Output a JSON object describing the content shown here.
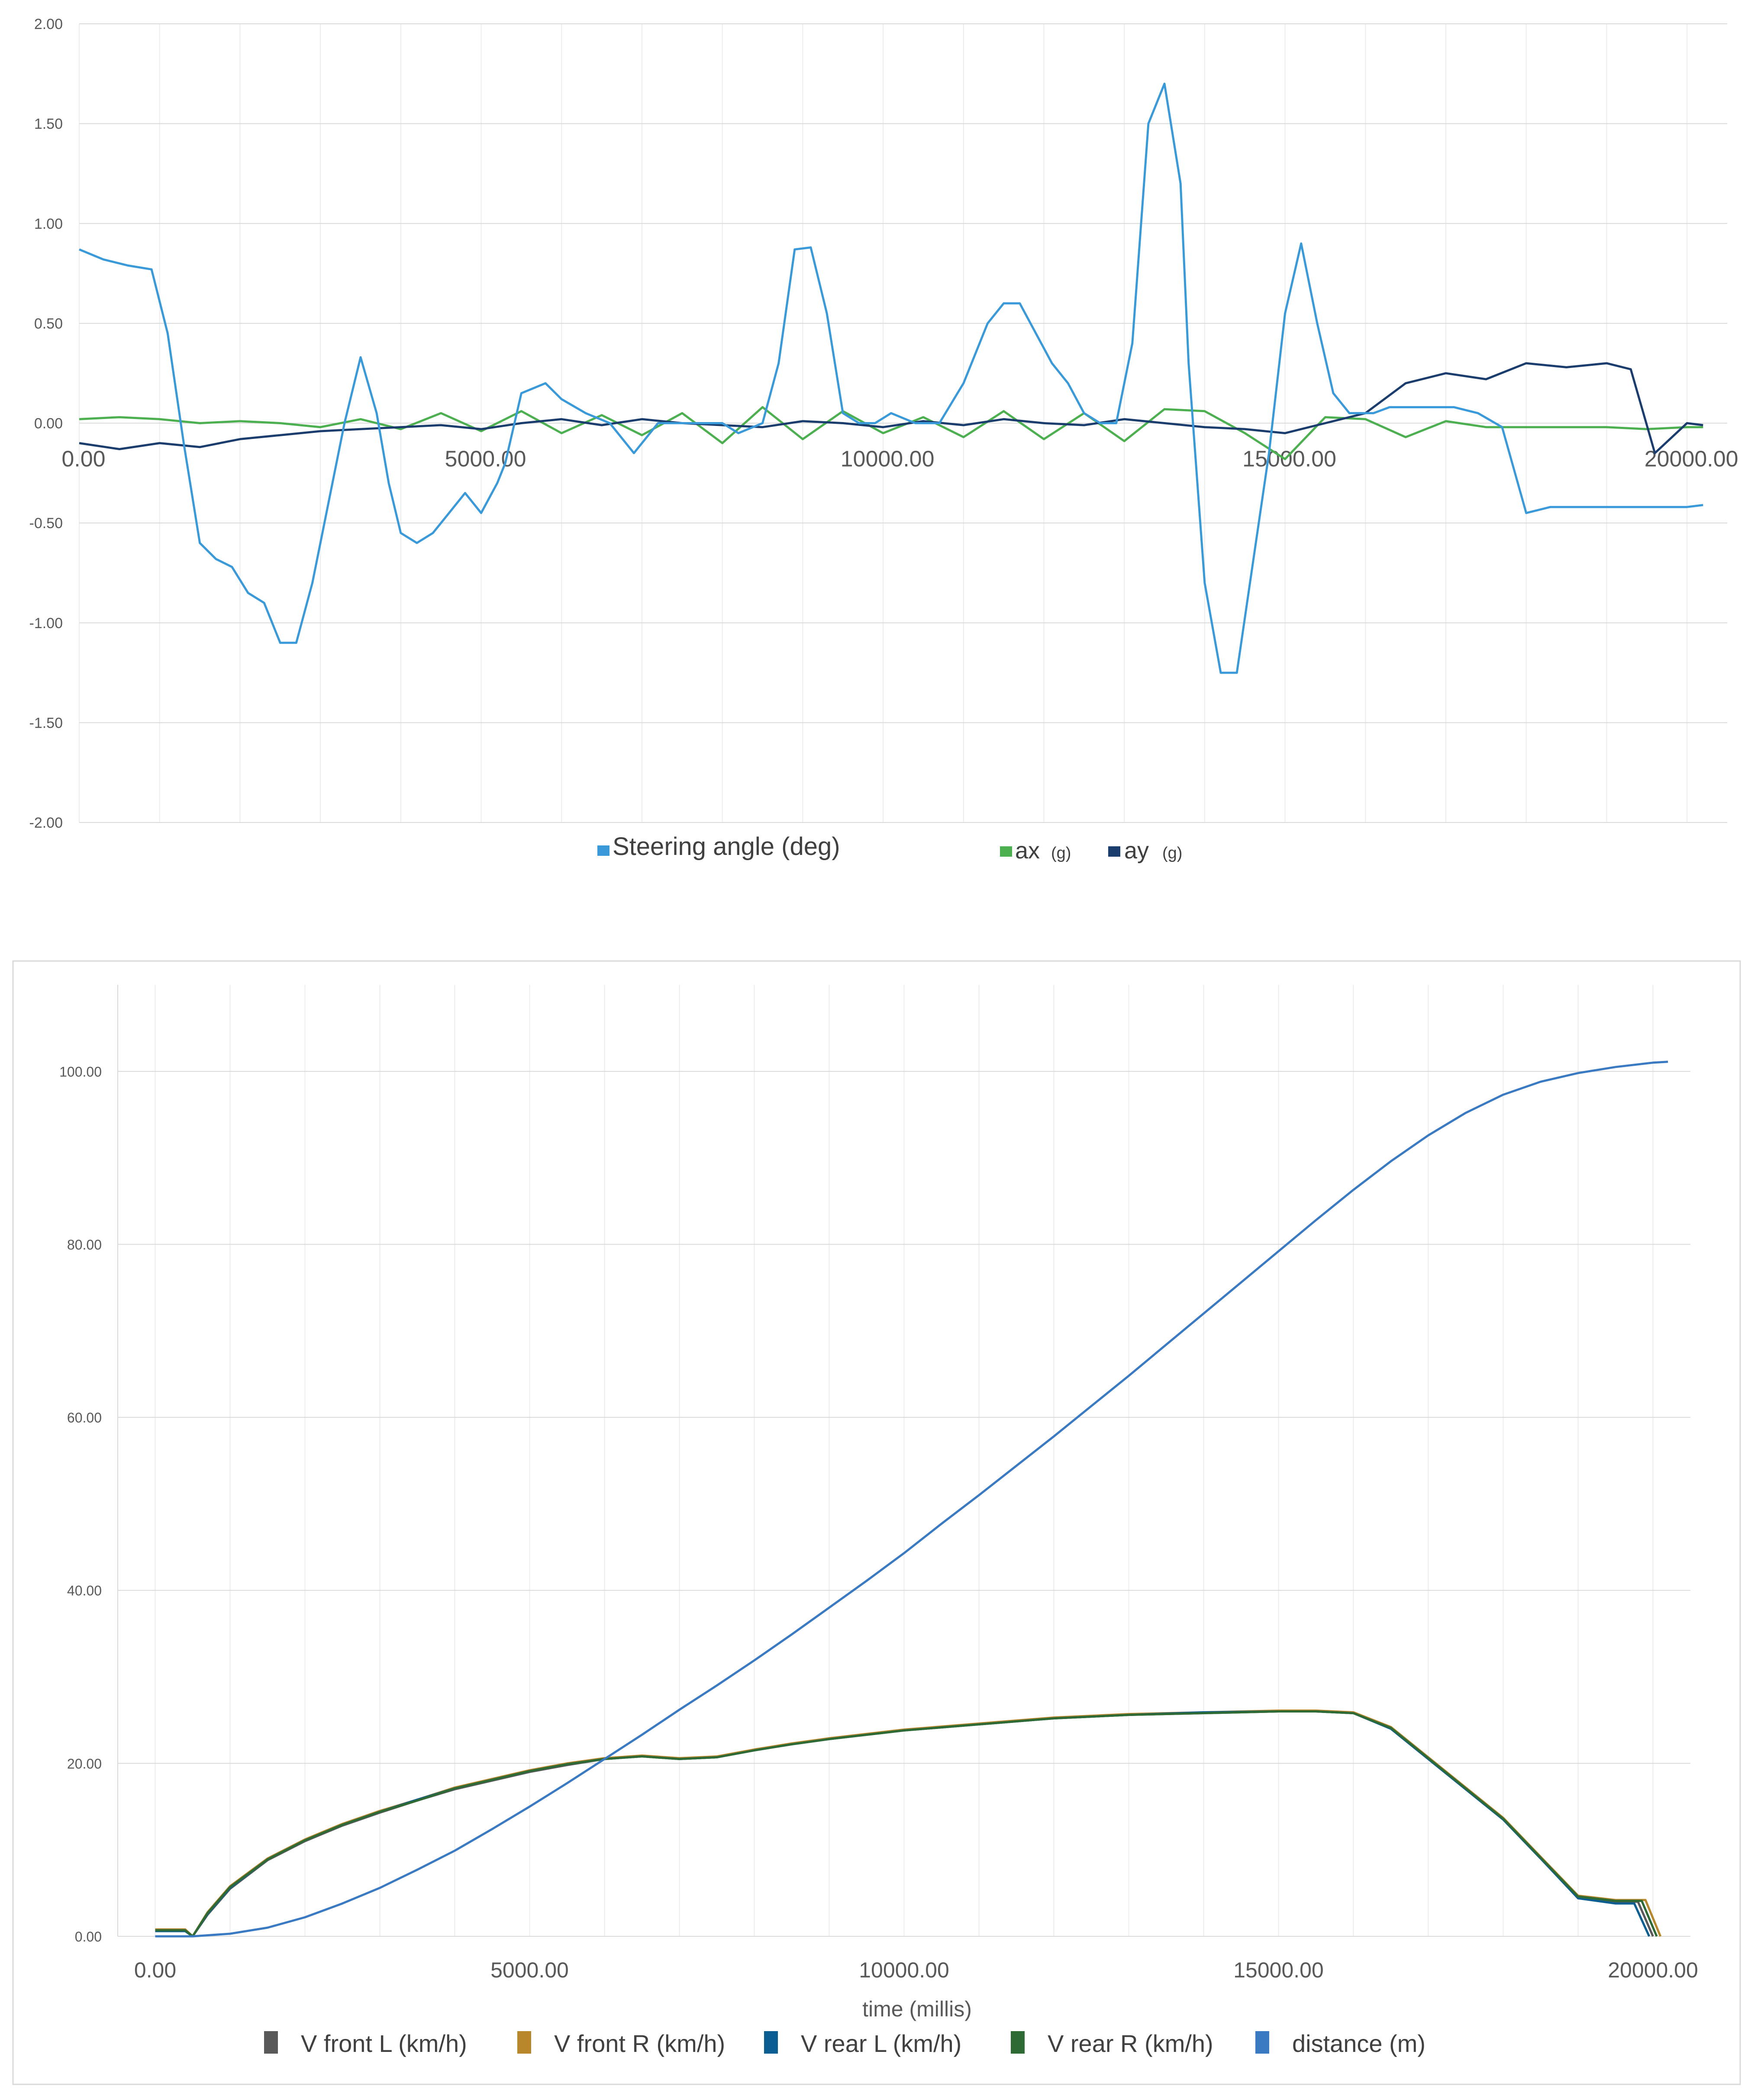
{
  "chart_data": [
    {
      "type": "line",
      "title": "",
      "xlabel": "",
      "ylabel": "",
      "xlim": [
        0,
        20500
      ],
      "ylim": [
        -2,
        2
      ],
      "x_ticks": [
        "0.00",
        "5000.00",
        "10000.00",
        "15000.00",
        "20000.00"
      ],
      "y_ticks": [
        "2.00",
        "1.50",
        "1.00",
        "0.50",
        "0.00",
        "-0.50",
        "-1.00",
        "-1.50",
        "-2.00"
      ],
      "grid": true,
      "legend_position": "bottom",
      "legend": [
        {
          "label": "Steering angle (deg)",
          "color": "#3a9ad9"
        },
        {
          "label": "ax",
          "unit": "(g)",
          "color": "#4caf50"
        },
        {
          "label": "ay",
          "unit": "(g)",
          "color": "#1b3d6e"
        }
      ],
      "series": [
        {
          "name": "Steering angle (deg)",
          "color": "#3a9ad9",
          "x": [
            0,
            300,
            600,
            900,
            1100,
            1300,
            1500,
            1700,
            1900,
            2100,
            2300,
            2500,
            2700,
            2900,
            3100,
            3300,
            3500,
            3700,
            3850,
            4000,
            4200,
            4400,
            4600,
            4800,
            5000,
            5200,
            5300,
            5500,
            5800,
            6000,
            6300,
            6600,
            6900,
            7200,
            7500,
            7800,
            8000,
            8200,
            8500,
            8700,
            8900,
            9100,
            9300,
            9500,
            9700,
            9900,
            10100,
            10400,
            10700,
            11000,
            11300,
            11500,
            11700,
            11900,
            12100,
            12300,
            12500,
            12700,
            12900,
            13100,
            13300,
            13500,
            13700,
            13800,
            14000,
            14200,
            14400,
            14600,
            14800,
            15000,
            15200,
            15400,
            15600,
            15800,
            15900,
            16100,
            16300,
            16500,
            16800,
            17100,
            17400,
            17700,
            18000,
            18300,
            18600,
            18900,
            19200,
            19400,
            19600,
            19800,
            20000,
            20200
          ],
          "y": [
            0.87,
            0.82,
            0.79,
            0.77,
            0.45,
            -0.1,
            -0.6,
            -0.68,
            -0.72,
            -0.85,
            -0.9,
            -1.1,
            -1.1,
            -0.8,
            -0.4,
            0.0,
            0.33,
            0.05,
            -0.3,
            -0.55,
            -0.6,
            -0.55,
            -0.45,
            -0.35,
            -0.45,
            -0.3,
            -0.2,
            0.15,
            0.2,
            0.12,
            0.05,
            0.0,
            -0.15,
            0.0,
            0.0,
            0.0,
            0.0,
            -0.05,
            0.0,
            0.3,
            0.87,
            0.88,
            0.55,
            0.05,
            0.0,
            0.0,
            0.05,
            0.0,
            0.0,
            0.2,
            0.5,
            0.6,
            0.6,
            0.45,
            0.3,
            0.2,
            0.05,
            0.0,
            0.0,
            0.4,
            1.5,
            1.7,
            1.2,
            0.3,
            -0.8,
            -1.25,
            -1.25,
            -0.7,
            -0.15,
            0.55,
            0.9,
            0.5,
            0.15,
            0.05,
            0.05,
            0.05,
            0.08,
            0.08,
            0.08,
            0.08,
            0.05,
            -0.02,
            -0.45,
            -0.42,
            -0.42,
            -0.42,
            -0.42,
            -0.42,
            -0.42,
            -0.42,
            -0.42,
            -0.41
          ]
        },
        {
          "name": "ax",
          "color": "#4caf50",
          "x": [
            0,
            500,
            1000,
            1500,
            2000,
            2500,
            3000,
            3500,
            4000,
            4500,
            5000,
            5500,
            6000,
            6500,
            7000,
            7500,
            8000,
            8500,
            9000,
            9500,
            10000,
            10500,
            11000,
            11500,
            12000,
            12500,
            13000,
            13500,
            14000,
            14500,
            15000,
            15500,
            16000,
            16500,
            17000,
            17500,
            18000,
            18500,
            19000,
            19500,
            20000,
            20200
          ],
          "y": [
            0.02,
            0.03,
            0.02,
            0.0,
            0.01,
            0.0,
            -0.02,
            0.02,
            -0.03,
            0.05,
            -0.04,
            0.06,
            -0.05,
            0.04,
            -0.06,
            0.05,
            -0.1,
            0.08,
            -0.08,
            0.06,
            -0.05,
            0.03,
            -0.07,
            0.06,
            -0.08,
            0.05,
            -0.09,
            0.07,
            0.06,
            -0.05,
            -0.18,
            0.03,
            0.02,
            -0.07,
            0.01,
            -0.02,
            -0.02,
            -0.02,
            -0.02,
            -0.03,
            -0.02,
            -0.02
          ]
        },
        {
          "name": "ay",
          "color": "#1b3d6e",
          "x": [
            0,
            500,
            1000,
            1500,
            2000,
            2500,
            3000,
            3500,
            4000,
            4500,
            5000,
            5500,
            6000,
            6500,
            7000,
            7500,
            8000,
            8500,
            9000,
            9500,
            10000,
            10500,
            11000,
            11500,
            12000,
            12500,
            13000,
            13500,
            14000,
            14500,
            15000,
            15500,
            16000,
            16500,
            17000,
            17500,
            18000,
            18500,
            19000,
            19300,
            19600,
            20000,
            20200
          ],
          "y": [
            -0.1,
            -0.13,
            -0.1,
            -0.12,
            -0.08,
            -0.06,
            -0.04,
            -0.03,
            -0.02,
            -0.01,
            -0.03,
            0.0,
            0.02,
            -0.01,
            0.02,
            0.0,
            -0.01,
            -0.02,
            0.01,
            0.0,
            -0.02,
            0.01,
            -0.01,
            0.02,
            0.0,
            -0.01,
            0.02,
            0.0,
            -0.02,
            -0.03,
            -0.05,
            0.0,
            0.05,
            0.2,
            0.25,
            0.22,
            0.3,
            0.28,
            0.3,
            0.27,
            -0.15,
            0.0,
            -0.01
          ]
        }
      ]
    },
    {
      "type": "line",
      "title": "",
      "xlabel": "time (millis)",
      "ylabel": "",
      "xlim": [
        -500,
        20500
      ],
      "ylim": [
        0,
        110
      ],
      "x_ticks": [
        "0.00",
        "5000.00",
        "10000.00",
        "15000.00",
        "20000.00"
      ],
      "y_ticks": [
        "100.00",
        "80.00",
        "60.00",
        "40.00",
        "20.00",
        "0.00"
      ],
      "grid": true,
      "legend_position": "bottom",
      "legend": [
        {
          "label": "V front L (km/h)",
          "color": "#595959"
        },
        {
          "label": "V front R (km/h)",
          "color": "#b8862b"
        },
        {
          "label": "V rear L (km/h)",
          "color": "#0b5e91"
        },
        {
          "label": "V rear R (km/h)",
          "color": "#2e6b34"
        },
        {
          "label": "distance (m)",
          "color": "#3a7ac2"
        }
      ],
      "series": [
        {
          "name": "V front L (km/h)",
          "color": "#595959",
          "x": [
            0,
            400,
            500,
            700,
            1000,
            1500,
            2000,
            2500,
            3000,
            3500,
            4000,
            4500,
            5000,
            5500,
            6000,
            6500,
            7000,
            7500,
            8000,
            8500,
            9000,
            9500,
            10000,
            11000,
            12000,
            13000,
            14000,
            15000,
            15500,
            16000,
            16500,
            17000,
            17500,
            18000,
            18500,
            19000,
            19500,
            19800,
            20000
          ],
          "y": [
            0.8,
            0.8,
            0,
            2.5,
            5.5,
            8.8,
            11.0,
            12.8,
            14.3,
            15.7,
            17.0,
            18.0,
            19.0,
            19.8,
            20.5,
            20.8,
            20.5,
            20.7,
            21.5,
            22.2,
            22.8,
            23.3,
            23.8,
            24.5,
            25.2,
            25.6,
            25.8,
            26.0,
            26.0,
            25.8,
            24.0,
            20.5,
            17.0,
            13.5,
            9.0,
            4.5,
            4.0,
            4.0,
            0
          ]
        },
        {
          "name": "V front R (km/h)",
          "color": "#b8862b",
          "x": [
            0,
            400,
            500,
            700,
            1000,
            1500,
            2000,
            2500,
            3000,
            3500,
            4000,
            4500,
            5000,
            5500,
            6000,
            6500,
            7000,
            7500,
            8000,
            8500,
            9000,
            9500,
            10000,
            11000,
            12000,
            13000,
            14000,
            15000,
            15500,
            16000,
            16500,
            17000,
            17500,
            18000,
            18500,
            19000,
            19500,
            19900,
            20100
          ],
          "y": [
            0.8,
            0.8,
            0,
            2.8,
            5.8,
            9.0,
            11.2,
            13.0,
            14.5,
            15.8,
            17.2,
            18.2,
            19.2,
            20.0,
            20.6,
            20.9,
            20.6,
            20.8,
            21.6,
            22.3,
            22.9,
            23.4,
            23.9,
            24.6,
            25.3,
            25.7,
            25.9,
            26.1,
            26.1,
            25.9,
            24.2,
            20.7,
            17.2,
            13.7,
            9.2,
            4.7,
            4.2,
            4.2,
            0
          ]
        },
        {
          "name": "V rear L (km/h)",
          "color": "#0b5e91",
          "x": [
            0,
            400,
            500,
            700,
            1000,
            1500,
            2000,
            2500,
            3000,
            3500,
            4000,
            4500,
            5000,
            5500,
            6000,
            6500,
            7000,
            7500,
            8000,
            8500,
            9000,
            9500,
            10000,
            11000,
            12000,
            13000,
            14000,
            15000,
            15500,
            16000,
            16500,
            17000,
            17500,
            18000,
            18500,
            19000,
            19500,
            19750,
            19950
          ],
          "y": [
            0.6,
            0.6,
            0,
            2.6,
            5.6,
            8.9,
            11.1,
            12.9,
            14.4,
            15.8,
            17.1,
            18.1,
            19.1,
            19.9,
            20.5,
            20.8,
            20.5,
            20.7,
            21.5,
            22.2,
            22.8,
            23.3,
            23.8,
            24.5,
            25.2,
            25.6,
            25.9,
            26.0,
            26.0,
            25.8,
            24.0,
            20.5,
            17.0,
            13.5,
            9.0,
            4.4,
            3.8,
            3.8,
            0
          ]
        },
        {
          "name": "V rear R (km/h)",
          "color": "#2e6b34",
          "x": [
            0,
            400,
            500,
            700,
            1000,
            1500,
            2000,
            2500,
            3000,
            3500,
            4000,
            4500,
            5000,
            5500,
            6000,
            6500,
            7000,
            7500,
            8000,
            8500,
            9000,
            9500,
            10000,
            11000,
            12000,
            13000,
            14000,
            15000,
            15500,
            16000,
            16500,
            17000,
            17500,
            18000,
            18500,
            19000,
            19500,
            19850,
            20050
          ],
          "y": [
            0.7,
            0.7,
            0,
            2.7,
            5.7,
            8.9,
            11.1,
            12.9,
            14.4,
            15.7,
            17.1,
            18.1,
            19.1,
            19.9,
            20.5,
            20.8,
            20.5,
            20.7,
            21.5,
            22.2,
            22.8,
            23.3,
            23.8,
            24.5,
            25.2,
            25.6,
            25.8,
            26.0,
            26.0,
            25.8,
            24.1,
            20.6,
            17.1,
            13.6,
            9.1,
            4.6,
            4.1,
            4.1,
            0
          ]
        },
        {
          "name": "distance (m)",
          "color": "#3a7ac2",
          "x": [
            0,
            500,
            1000,
            1500,
            2000,
            2500,
            3000,
            3500,
            4000,
            4500,
            5000,
            5500,
            6000,
            6500,
            7000,
            7500,
            8000,
            8500,
            9000,
            9500,
            10000,
            10500,
            11000,
            11500,
            12000,
            12500,
            13000,
            13500,
            14000,
            14500,
            15000,
            15500,
            16000,
            16500,
            17000,
            17500,
            18000,
            18500,
            19000,
            19500,
            20000,
            20200
          ],
          "y": [
            0,
            0,
            0.3,
            1.0,
            2.2,
            3.8,
            5.6,
            7.7,
            9.9,
            12.4,
            15.0,
            17.7,
            20.5,
            23.3,
            26.2,
            29.0,
            31.9,
            34.9,
            38.0,
            41.1,
            44.3,
            47.7,
            51.0,
            54.4,
            57.8,
            61.3,
            64.8,
            68.4,
            72.0,
            75.6,
            79.2,
            82.8,
            86.3,
            89.6,
            92.6,
            95.2,
            97.3,
            98.8,
            99.8,
            100.5,
            101.0,
            101.1
          ]
        }
      ]
    }
  ]
}
